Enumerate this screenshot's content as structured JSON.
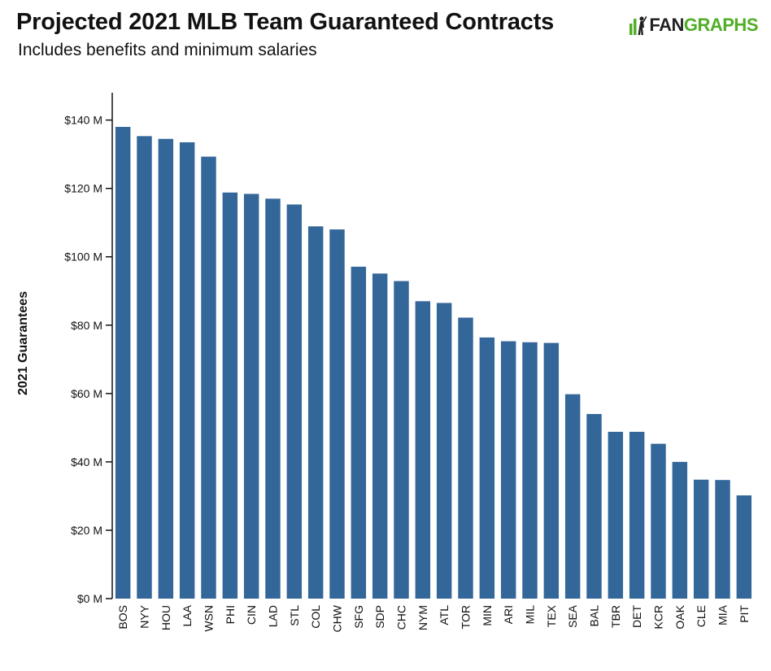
{
  "brand": {
    "name_dark": "FAN",
    "name_green": "GRAPHS",
    "logo_icon": "batter-icon",
    "colors": {
      "dark": "#222222",
      "green": "#50ae26"
    }
  },
  "chart_data": {
    "type": "bar",
    "title": "Projected 2021 MLB Team Guaranteed Contracts",
    "subtitle": "Includes benefits and minimum salaries",
    "xlabel": "",
    "ylabel": "2021 Guarantees",
    "unit": "M",
    "ylim": [
      0,
      148
    ],
    "yticks": [
      0,
      20,
      40,
      60,
      80,
      100,
      120,
      140
    ],
    "ytick_labels": [
      "$0 M",
      "$20 M",
      "$40 M",
      "$60 M",
      "$80 M",
      "$100 M",
      "$120 M",
      "$140 M"
    ],
    "grid": false,
    "bar_color": "#336699",
    "categories": [
      "BOS",
      "NYY",
      "HOU",
      "LAA",
      "WSN",
      "PHI",
      "CIN",
      "LAD",
      "STL",
      "COL",
      "CHW",
      "SFG",
      "SDP",
      "CHC",
      "NYM",
      "ATL",
      "TOR",
      "MIN",
      "ARI",
      "MIL",
      "TEX",
      "SEA",
      "BAL",
      "TBR",
      "DET",
      "KCR",
      "OAK",
      "CLE",
      "MIA",
      "PIT"
    ],
    "values": [
      138.0,
      135.3,
      134.5,
      133.5,
      129.3,
      118.8,
      118.4,
      117.0,
      115.3,
      108.9,
      108.0,
      97.1,
      95.1,
      92.9,
      87.0,
      86.5,
      82.2,
      76.4,
      75.3,
      75.0,
      74.8,
      59.8,
      54.0,
      48.8,
      48.8,
      45.3,
      40.0,
      34.8,
      34.7,
      30.2
    ]
  }
}
